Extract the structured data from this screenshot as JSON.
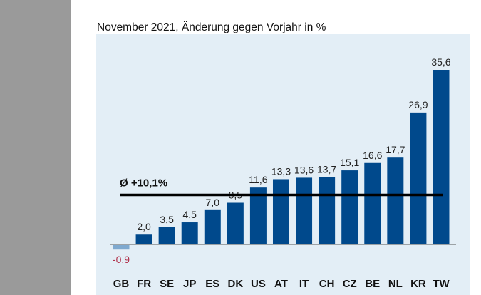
{
  "chart_data": {
    "type": "bar",
    "title": "November 2021, Änderung gegen Vorjahr in %",
    "categories": [
      "GB",
      "FR",
      "SE",
      "JP",
      "ES",
      "DK",
      "US",
      "AT",
      "IT",
      "CH",
      "CZ",
      "BE",
      "NL",
      "KR",
      "TW"
    ],
    "values": [
      -0.9,
      2.0,
      3.5,
      4.5,
      7.0,
      8.5,
      11.6,
      13.3,
      13.6,
      13.7,
      15.1,
      16.6,
      17.7,
      26.9,
      35.6
    ],
    "value_labels": [
      "-0,9",
      "2,0",
      "3,5",
      "4,5",
      "7,0",
      "8,5",
      "11,6",
      "13,3",
      "13,6",
      "13,7",
      "15,1",
      "16,6",
      "17,7",
      "26,9",
      "35,6"
    ],
    "average": {
      "value": 10.1,
      "label": "Ø +10,1%"
    },
    "xlabel": "",
    "ylabel": "",
    "grid": false,
    "colors": {
      "positive": "#00498c",
      "negative": "#7fa9cf",
      "negative_label": "#b0304a",
      "panel": "#e3eef6",
      "average_line": "#000000"
    }
  }
}
